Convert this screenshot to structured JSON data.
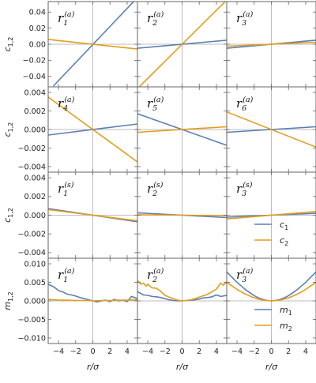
{
  "colors": {
    "series1": "#5b7fb5",
    "series2": "#e39e1b",
    "frame": "#666666",
    "zero": "#bdbdbd"
  },
  "axes": {
    "xlabel": "r/σ",
    "x_ticks": [
      -4,
      -2,
      0,
      2,
      4
    ],
    "xlim": [
      -5.2,
      5.2
    ]
  },
  "rows": [
    {
      "ylabel": "c1,2",
      "ylim": [
        -0.053,
        0.053
      ],
      "y_ticks": [
        -0.04,
        -0.02,
        0.0,
        0.02,
        0.04
      ],
      "y_tick_labels": [
        "−0.04",
        "−0.02",
        "0.00",
        "0.02",
        "0.04"
      ]
    },
    {
      "ylabel": "c1,2",
      "ylim": [
        -0.0046,
        0.0046
      ],
      "y_ticks": [
        -0.004,
        -0.002,
        0.0,
        0.002,
        0.004
      ],
      "y_tick_labels": [
        "−0.004",
        "−0.002",
        "0.000",
        "0.002",
        "0.004"
      ]
    },
    {
      "ylabel": "c1,2",
      "ylim": [
        -0.0046,
        0.0046
      ],
      "y_ticks": [
        -0.004,
        -0.002,
        0.0,
        0.002,
        0.004
      ],
      "y_tick_labels": [
        "−0.004",
        "−0.002",
        "0.000",
        "0.002",
        "0.004"
      ]
    },
    {
      "ylabel": "m1,2",
      "ylim": [
        -0.0115,
        0.0115
      ],
      "y_ticks": [
        -0.01,
        -0.005,
        0.0,
        0.005,
        0.01
      ],
      "y_tick_labels": [
        "−0.010",
        "−0.005",
        "0.000",
        "0.005",
        "0.010"
      ]
    }
  ],
  "legends": [
    {
      "row": 2,
      "entries": [
        {
          "sym": "c",
          "sub": "1",
          "series": 1
        },
        {
          "sym": "c",
          "sub": "2",
          "series": 2
        }
      ]
    },
    {
      "row": 3,
      "entries": [
        {
          "sym": "m",
          "sub": "1",
          "series": 1
        },
        {
          "sym": "m",
          "sub": "2",
          "series": 2
        }
      ]
    }
  ],
  "chart_data": {
    "type": "line",
    "x_range": [
      -5.2,
      5.2
    ],
    "panels": [
      {
        "row": 0,
        "col": 0,
        "label": "r",
        "sub": "1",
        "sup": "(a)",
        "series": [
          {
            "name": "c1",
            "x": [
              -4.6,
              5.2
            ],
            "y": [
              -0.052,
              0.058
            ]
          },
          {
            "name": "c2",
            "x": [
              -5.2,
              5.2
            ],
            "y": [
              0.006,
              -0.006
            ]
          }
        ]
      },
      {
        "row": 0,
        "col": 1,
        "label": "r",
        "sub": "2",
        "sup": "(a)",
        "series": [
          {
            "name": "c1",
            "x": [
              -5.2,
              5.2
            ],
            "y": [
              -0.005,
              0.005
            ]
          },
          {
            "name": "c2",
            "x": [
              -5.0,
              5.2
            ],
            "y": [
              -0.053,
              0.055
            ]
          }
        ]
      },
      {
        "row": 0,
        "col": 2,
        "label": "r",
        "sub": "3",
        "sup": "(a)",
        "series": [
          {
            "name": "c1",
            "x": [
              -5.2,
              5.2
            ],
            "y": [
              -0.005,
              0.005
            ]
          },
          {
            "name": "c2",
            "x": [
              -5.2,
              5.2
            ],
            "y": [
              -0.0025,
              0.0025
            ]
          }
        ]
      },
      {
        "row": 1,
        "col": 0,
        "label": "r",
        "sub": "4",
        "sup": "(a)",
        "series": [
          {
            "name": "c1",
            "x": [
              -5.2,
              5.2
            ],
            "y": [
              -0.0006,
              0.0006
            ]
          },
          {
            "name": "c2",
            "x": [
              -5.2,
              5.2
            ],
            "y": [
              0.0035,
              -0.0035
            ]
          }
        ]
      },
      {
        "row": 1,
        "col": 1,
        "label": "r",
        "sub": "5",
        "sup": "(a)",
        "series": [
          {
            "name": "c1",
            "x": [
              -5.2,
              5.2
            ],
            "y": [
              0.0017,
              -0.0017
            ]
          },
          {
            "name": "c2",
            "x": [
              -5.2,
              5.2
            ],
            "y": [
              -0.0003,
              0.0003
            ]
          }
        ]
      },
      {
        "row": 1,
        "col": 2,
        "label": "r",
        "sub": "6",
        "sup": "(a)",
        "series": [
          {
            "name": "c1",
            "x": [
              -5.2,
              5.2
            ],
            "y": [
              -0.0003,
              0.0003
            ]
          },
          {
            "name": "c2",
            "x": [
              -5.2,
              5.2
            ],
            "y": [
              0.0019,
              -0.0019
            ]
          }
        ]
      },
      {
        "row": 2,
        "col": 0,
        "label": "r",
        "sub": "1",
        "sup": "(s)",
        "series": [
          {
            "name": "c1",
            "x": [
              -5.2,
              5.2
            ],
            "y": [
              0.0007,
              -0.0007
            ]
          },
          {
            "name": "c2",
            "x": [
              -5.2,
              5.2
            ],
            "y": [
              0.0006,
              -0.0006
            ]
          }
        ]
      },
      {
        "row": 2,
        "col": 1,
        "label": "r",
        "sub": "2",
        "sup": "(s)",
        "series": [
          {
            "name": "c1",
            "x": [
              -5.2,
              5.2
            ],
            "y": [
              0.00025,
              -0.00025
            ]
          },
          {
            "name": "c2",
            "x": [
              -5.2,
              5.2
            ],
            "y": [
              5e-05,
              -5e-05
            ]
          }
        ]
      },
      {
        "row": 2,
        "col": 2,
        "label": "r",
        "sub": "3",
        "sup": "(s)",
        "series": [
          {
            "name": "c1",
            "x": [
              -5.2,
              5.2
            ],
            "y": [
              -0.0002,
              0.0002
            ]
          },
          {
            "name": "c2",
            "x": [
              -5.2,
              5.2
            ],
            "y": [
              -0.0004,
              0.0004
            ]
          }
        ]
      },
      {
        "row": 3,
        "col": 0,
        "label": "r",
        "sub": "1",
        "sup": "(a)",
        "series": [
          {
            "name": "m1",
            "x": [
              -5.2,
              -4.5,
              -4,
              -3.5,
              -3,
              -2.5,
              -2,
              -1.5,
              -1,
              -0.5,
              0,
              0.5,
              1,
              1.5,
              2,
              2.5,
              3,
              3.5,
              4,
              4.5,
              5.2
            ],
            "y": [
              0.0045,
              0.0037,
              0.0028,
              0.0024,
              0.0018,
              0.0016,
              0.0013,
              0.0009,
              0.0006,
              0.0003,
              0.0,
              -0.0003,
              0.0,
              0.0002,
              -0.0002,
              0.0004,
              0.0,
              0.0002,
              -0.0002,
              0.0012,
              0.0006
            ]
          },
          {
            "name": "m2",
            "x": [
              -5.2,
              -4,
              -3,
              -2,
              -1,
              0,
              1,
              2,
              3,
              4,
              5.2
            ],
            "y": [
              0.0004,
              0.0002,
              0.0002,
              0.0001,
              0.0001,
              0.0,
              0.0001,
              0.0001,
              0.0002,
              0.0002,
              0.0003
            ]
          }
        ]
      },
      {
        "row": 3,
        "col": 1,
        "label": "r",
        "sub": "2",
        "sup": "(a)",
        "series": [
          {
            "name": "m1",
            "x": [
              -5.2,
              -4.5,
              -4,
              -3.5,
              -3,
              -2.5,
              -2,
              -1.5,
              -1,
              -0.5,
              0,
              0.5,
              1,
              1.5,
              2,
              2.5,
              3,
              3.5,
              4,
              4.5,
              5.2
            ],
            "y": [
              0.0025,
              0.0016,
              0.0015,
              0.0012,
              0.0011,
              0.0009,
              0.0006,
              0.0003,
              0.0001,
              0.0,
              0.0,
              0.0001,
              0.0002,
              0.0003,
              0.0005,
              0.0008,
              0.0009,
              0.0011,
              0.0016,
              0.0012,
              0.0015
            ]
          },
          {
            "name": "m2",
            "x": [
              -5.2,
              -4.8,
              -4.5,
              -4.2,
              -4,
              -3.5,
              -3,
              -2.5,
              -2,
              -1.5,
              -1,
              -0.5,
              0,
              0.5,
              1,
              1.5,
              2,
              2.5,
              3,
              3.5,
              4,
              4.5,
              4.8,
              5.2
            ],
            "y": [
              0.0055,
              0.0045,
              0.0048,
              0.004,
              0.0045,
              0.0035,
              0.0034,
              0.0026,
              0.0015,
              0.001,
              0.0006,
              0.0002,
              0.0,
              0.0001,
              0.0003,
              0.0006,
              0.001,
              0.0014,
              0.0018,
              0.0025,
              0.0032,
              0.0048,
              0.0042,
              0.0052
            ]
          }
        ]
      },
      {
        "row": 3,
        "col": 2,
        "label": "r",
        "sub": "3",
        "sup": "(a)",
        "series": [
          {
            "name": "m1",
            "x": [
              -5.2,
              -4.5,
              -4,
              -3.5,
              -3,
              -2.5,
              -2,
              -1.5,
              -1,
              -0.5,
              0,
              0.5,
              1,
              1.5,
              2,
              2.5,
              3,
              3.5,
              4,
              4.5,
              5.2
            ],
            "y": [
              0.0078,
              0.0062,
              0.005,
              0.004,
              0.003,
              0.0022,
              0.0014,
              0.0008,
              0.0004,
              0.0001,
              0.0,
              0.0001,
              0.0004,
              0.0008,
              0.0014,
              0.0022,
              0.003,
              0.004,
              0.005,
              0.0062,
              0.0078
            ]
          },
          {
            "name": "m2",
            "x": [
              -5.2,
              -4.5,
              -4,
              -3.5,
              -3,
              -2.5,
              -2,
              -1.5,
              -1,
              -0.5,
              0,
              0.5,
              1,
              1.5,
              2,
              2.5,
              3,
              3.5,
              4,
              4.5,
              5.2
            ],
            "y": [
              0.005,
              0.0039,
              0.0031,
              0.0024,
              0.0018,
              0.0013,
              0.0008,
              0.0005,
              0.0002,
              0.0001,
              0.0,
              0.0001,
              0.0002,
              0.0005,
              0.0008,
              0.0013,
              0.0018,
              0.0024,
              0.0031,
              0.0039,
              0.005
            ]
          }
        ]
      }
    ]
  }
}
